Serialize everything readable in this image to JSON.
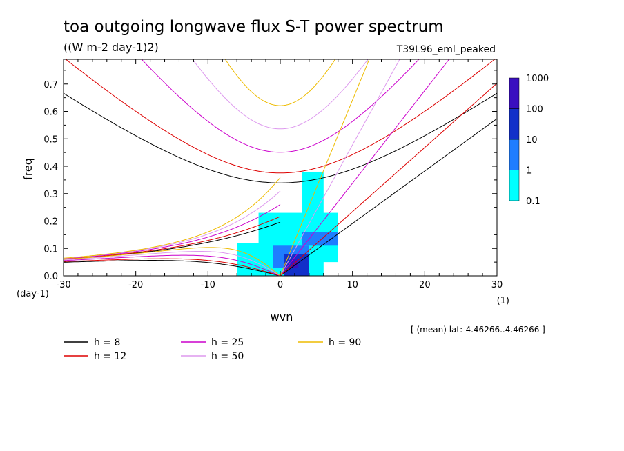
{
  "header": {
    "title": "toa outgoing longwave flux S-T power spectrum",
    "units": "((W m-2 day-1)2)",
    "run": "T39L96_eml_peaked"
  },
  "footer": {
    "region": "[ (mean) lat:-4.46266..4.46266 ]"
  },
  "chart_data": {
    "type": "heatmap",
    "xlabel": "wvn",
    "ylabel": "freq",
    "x_unit": "(1)",
    "y_unit": "(day-1)",
    "xlim": [
      -30,
      30
    ],
    "ylim": [
      0,
      0.79
    ],
    "x_ticks": [
      -30,
      -20,
      -10,
      0,
      10,
      20,
      30
    ],
    "y_ticks": [
      0.0,
      0.1,
      0.2,
      0.3,
      0.4,
      0.5,
      0.6,
      0.7
    ],
    "x_tick_labels": [
      "-30",
      "-20",
      "-10",
      "0",
      "10",
      "20",
      "30"
    ],
    "y_tick_labels": [
      "0.0",
      "0.1",
      "0.2",
      "0.3",
      "0.4",
      "0.5",
      "0.6",
      "0.7"
    ],
    "colorbar": {
      "levels": [
        "0.1",
        "1",
        "10",
        "100",
        "1000"
      ],
      "colors": [
        "#00ffff",
        "#1f7dff",
        "#1230c9",
        "#3a0fc0"
      ]
    },
    "power_regions": [
      {
        "level": 0,
        "wvn": [
          -6,
          6
        ],
        "freq": [
          0.0,
          0.12
        ]
      },
      {
        "level": 0,
        "wvn": [
          -3,
          8
        ],
        "freq": [
          0.05,
          0.23
        ]
      },
      {
        "level": 0,
        "wvn": [
          3,
          6
        ],
        "freq": [
          0.22,
          0.38
        ]
      },
      {
        "level": 1,
        "wvn": [
          -1,
          4
        ],
        "freq": [
          0.03,
          0.11
        ]
      },
      {
        "level": 1,
        "wvn": [
          3,
          8
        ],
        "freq": [
          0.11,
          0.16
        ]
      },
      {
        "level": 2,
        "wvn": [
          0.5,
          4
        ],
        "freq": [
          0.0,
          0.08
        ]
      },
      {
        "level": 3,
        "wvn": [
          1.5,
          2.5
        ],
        "freq": [
          0.03,
          0.06
        ]
      }
    ],
    "series": [
      {
        "name": "h =  8",
        "h": 8,
        "color": "#000000"
      },
      {
        "name": "h = 12",
        "h": 12,
        "color": "#dd0000"
      },
      {
        "name": "h = 25",
        "h": 25,
        "color": "#cc00cc"
      },
      {
        "name": "h = 50",
        "h": 50,
        "color": "#dd99ee"
      },
      {
        "name": "h = 90",
        "h": 90,
        "color": "#eebb00"
      }
    ]
  }
}
